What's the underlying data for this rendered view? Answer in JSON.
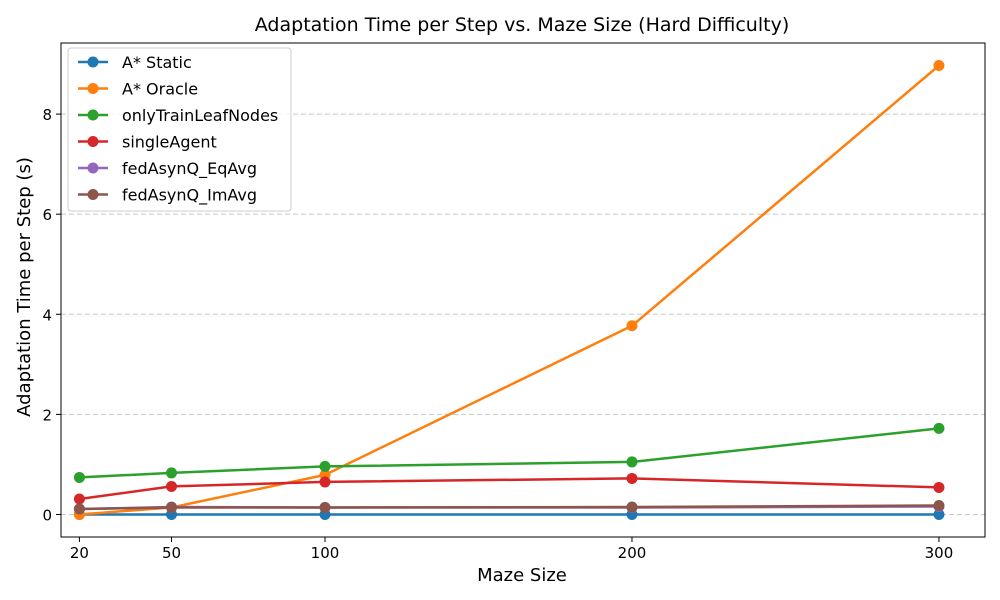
{
  "chart_data": {
    "type": "line",
    "title": "Adaptation Time per Step vs. Maze Size (Hard Difficulty)",
    "xlabel": "Maze Size",
    "ylabel": "Adaptation Time per Step (s)",
    "x": [
      20,
      50,
      100,
      200,
      300
    ],
    "xticks": [
      "20",
      "50",
      "100",
      "200",
      "300"
    ],
    "yticks": [
      "0",
      "2",
      "4",
      "6",
      "8"
    ],
    "xlim": [
      14,
      315
    ],
    "ylim": [
      -0.45,
      9.42
    ],
    "grid": "y-dashed",
    "legend_position": "top-left",
    "series": [
      {
        "name": "A* Static",
        "color": "#1f77b4",
        "values": [
          0.0,
          0.0,
          0.0,
          0.0,
          0.0
        ]
      },
      {
        "name": "A* Oracle",
        "color": "#ff7f0e",
        "values": [
          0.0,
          0.14,
          0.79,
          3.77,
          8.97
        ]
      },
      {
        "name": "onlyTrainLeafNodes",
        "color": "#2ca02c",
        "values": [
          0.74,
          0.83,
          0.96,
          1.05,
          1.72
        ]
      },
      {
        "name": "singleAgent",
        "color": "#d62728",
        "values": [
          0.31,
          0.56,
          0.65,
          0.72,
          0.54
        ]
      },
      {
        "name": "fedAsynQ_EqAvg",
        "color": "#9467bd",
        "values": [
          0.11,
          0.15,
          0.14,
          0.14,
          0.16
        ]
      },
      {
        "name": "fedAsynQ_ImAvg",
        "color": "#8c564b",
        "values": [
          0.11,
          0.14,
          0.14,
          0.15,
          0.18
        ]
      }
    ]
  }
}
